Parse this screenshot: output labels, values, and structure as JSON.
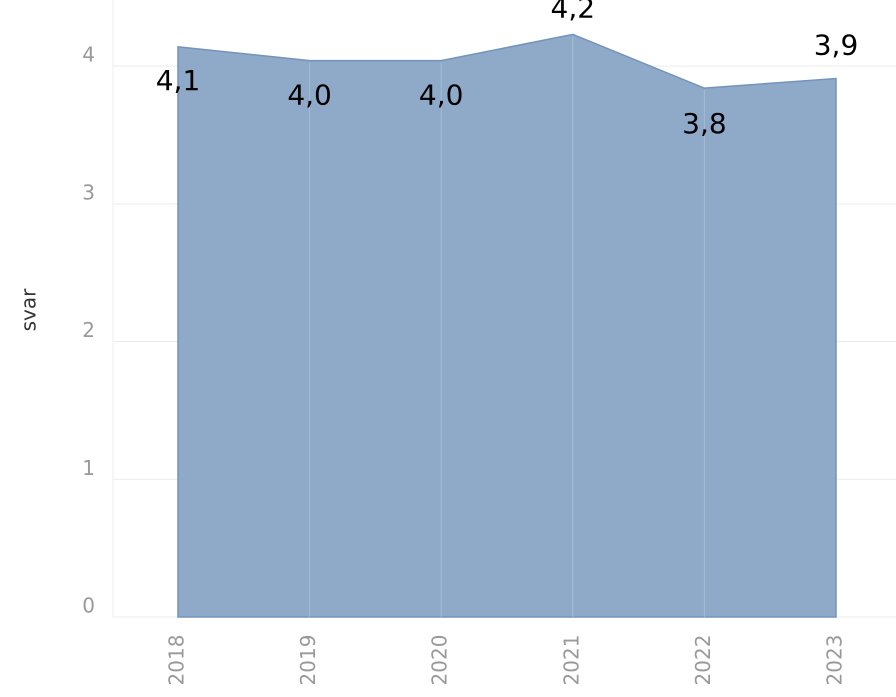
{
  "chart_data": {
    "type": "area",
    "y_label": "svar",
    "categories": [
      "2018",
      "2019",
      "2020",
      "2021",
      "2022",
      "2023"
    ],
    "values": [
      4.14,
      4.04,
      4.04,
      4.23,
      3.84,
      3.91
    ],
    "value_labels": [
      "4,1",
      "4,0",
      "4,0",
      "4,2",
      "3,8",
      "3,9"
    ],
    "color": "#8eaac8",
    "line_color": "#7393bb",
    "ylim": [
      0,
      4.48
    ],
    "yticks": [
      0,
      1,
      2,
      3,
      4
    ],
    "grid": true
  }
}
